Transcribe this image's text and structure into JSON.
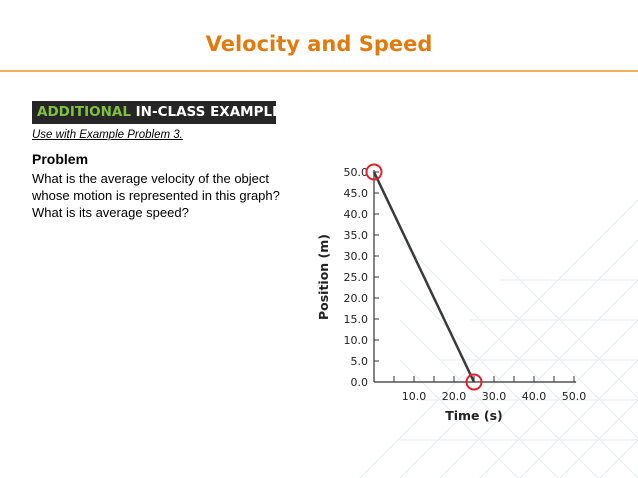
{
  "slide": {
    "title": "Velocity and Speed",
    "banner_accent": "ADDITIONAL",
    "banner_rest": "IN-CLASS EXAMPLE",
    "use_with": "Use with Example Problem 3.",
    "problem_heading": "Problem",
    "problem_text": "What is the average velocity of the object whose motion is represented in this graph? What is its average speed?"
  },
  "colors": {
    "title": "#e07b10",
    "banner_bg": "#262626",
    "banner_accent": "#7fc241",
    "line": "#3a3a3a",
    "highlight_circle": "#e0202a"
  },
  "chart_data": {
    "type": "line",
    "xlabel": "Time (s)",
    "ylabel": "Position (m)",
    "xlim": [
      0,
      50
    ],
    "ylim": [
      0,
      50
    ],
    "x_ticks": [
      0,
      5,
      10,
      15,
      20,
      25,
      30,
      35,
      40,
      45,
      50
    ],
    "x_tick_labels": [
      {
        "value": 10,
        "label": "10.0"
      },
      {
        "value": 20,
        "label": "20.0"
      },
      {
        "value": 30,
        "label": "30.0"
      },
      {
        "value": 40,
        "label": "40.0"
      },
      {
        "value": 50,
        "label": "50.0"
      }
    ],
    "y_tick_labels": [
      {
        "value": 0,
        "label": "0.0"
      },
      {
        "value": 5,
        "label": "5.0"
      },
      {
        "value": 10,
        "label": "10.0"
      },
      {
        "value": 15,
        "label": "15.0"
      },
      {
        "value": 20,
        "label": "20.0"
      },
      {
        "value": 25,
        "label": "25.0"
      },
      {
        "value": 30,
        "label": "30.0"
      },
      {
        "value": 35,
        "label": "35.0"
      },
      {
        "value": 40,
        "label": "40.0"
      },
      {
        "value": 45,
        "label": "45.0"
      },
      {
        "value": 50,
        "label": "50.0"
      }
    ],
    "series": [
      {
        "x": [
          0,
          25
        ],
        "y": [
          50,
          0
        ]
      }
    ],
    "highlighted_points": [
      {
        "x": 0,
        "y": 50
      },
      {
        "x": 25,
        "y": 0
      }
    ],
    "grid": false
  }
}
